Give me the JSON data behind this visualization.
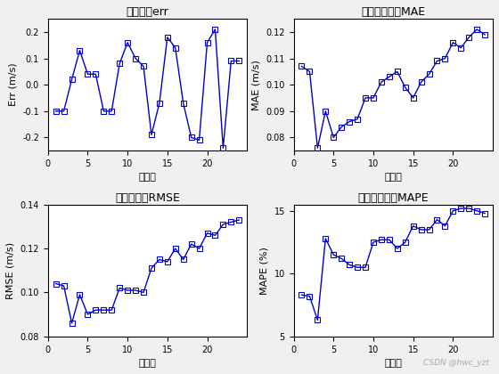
{
  "err_x": [
    1,
    2,
    3,
    4,
    5,
    6,
    7,
    8,
    9,
    10,
    11,
    12,
    13,
    14,
    15,
    16,
    17,
    18,
    19,
    20,
    21,
    22,
    23,
    24
  ],
  "err_y": [
    -0.1,
    -0.1,
    0.02,
    0.13,
    0.04,
    0.04,
    -0.1,
    -0.1,
    0.08,
    0.16,
    0.1,
    0.07,
    -0.19,
    -0.07,
    0.18,
    0.14,
    -0.07,
    -0.2,
    -0.21,
    0.16,
    0.21,
    -0.24,
    0.09,
    0.09
  ],
  "mae_x": [
    1,
    2,
    3,
    4,
    5,
    6,
    7,
    8,
    9,
    10,
    11,
    12,
    13,
    14,
    15,
    16,
    17,
    18,
    19,
    20,
    21,
    22,
    23,
    24
  ],
  "mae_y": [
    0.107,
    0.105,
    0.076,
    0.09,
    0.08,
    0.084,
    0.086,
    0.087,
    0.095,
    0.095,
    0.101,
    0.103,
    0.105,
    0.099,
    0.095,
    0.101,
    0.104,
    0.109,
    0.11,
    0.116,
    0.114,
    0.118,
    0.121,
    0.119
  ],
  "rmse_x": [
    1,
    2,
    3,
    4,
    5,
    6,
    7,
    8,
    9,
    10,
    11,
    12,
    13,
    14,
    15,
    16,
    17,
    18,
    19,
    20,
    21,
    22,
    23,
    24
  ],
  "rmse_y": [
    0.104,
    0.103,
    0.086,
    0.099,
    0.09,
    0.092,
    0.092,
    0.092,
    0.102,
    0.101,
    0.101,
    0.1,
    0.111,
    0.115,
    0.114,
    0.12,
    0.115,
    0.122,
    0.12,
    0.127,
    0.126,
    0.131,
    0.132,
    0.133
  ],
  "mape_x": [
    1,
    2,
    3,
    4,
    5,
    6,
    7,
    8,
    9,
    10,
    11,
    12,
    13,
    14,
    15,
    16,
    17,
    18,
    19,
    20,
    21,
    22,
    23,
    24
  ],
  "mape_y": [
    8.3,
    8.2,
    6.3,
    12.8,
    11.5,
    11.2,
    10.7,
    10.5,
    10.5,
    12.5,
    12.7,
    12.7,
    12.0,
    12.5,
    13.8,
    13.5,
    13.5,
    14.3,
    13.8,
    15.0,
    15.2,
    15.2,
    15.0,
    14.8
  ],
  "line_color": "#0000CC",
  "marker": "s",
  "marker_size": 4,
  "title1": "绝对误差err",
  "title2": "平均绝对误巪MAE",
  "title3": "均方根误巪RMSE",
  "title4": "平均相对误巪MAPE",
  "xlabel": "时间步",
  "ylabel1": "Err (m/s)",
  "ylabel2": "MAE (m/s)",
  "ylabel3": "RMSE (m/s)",
  "ylabel4": "MAPE (%)",
  "ylim1": [
    -0.25,
    0.25
  ],
  "ylim2": [
    0.075,
    0.125
  ],
  "ylim3": [
    0.08,
    0.14
  ],
  "ylim4": [
    5,
    15.5
  ],
  "xlim": [
    0,
    25
  ],
  "xticks": [
    0,
    5,
    10,
    15,
    20
  ],
  "yticks1": [
    -0.2,
    -0.1,
    0.0,
    0.1,
    0.2
  ],
  "yticks2": [
    0.08,
    0.09,
    0.1,
    0.11,
    0.12
  ],
  "yticks3": [
    0.08,
    0.1,
    0.12,
    0.14
  ],
  "yticks4": [
    5,
    10,
    15
  ],
  "watermark": "CSDN @hwc_yzt"
}
